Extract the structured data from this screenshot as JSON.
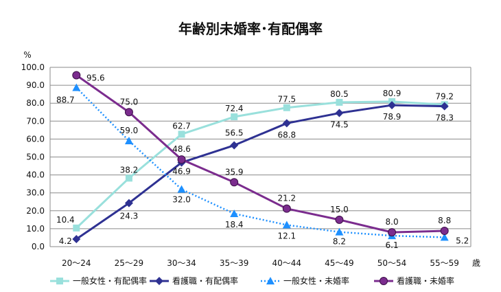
{
  "chart_data": {
    "type": "line",
    "title": "年齢別未婚率･有配偶率",
    "ylabel": "%",
    "xlabel": "歳",
    "ylim": [
      0,
      100
    ],
    "yticks": [
      "0.0",
      "10.0",
      "20.0",
      "30.0",
      "40.0",
      "50.0",
      "60.0",
      "70.0",
      "80.0",
      "90.0",
      "100.0"
    ],
    "categories": [
      "20～24",
      "25～29",
      "30～34",
      "35～39",
      "40～44",
      "45～49",
      "50～54",
      "55～59"
    ],
    "grid": true,
    "legend_position": "bottom",
    "series": [
      {
        "name": "一般女性・有配偶率",
        "color": "#99E0DC",
        "marker": "square",
        "line": "solid",
        "values": [
          10.4,
          38.2,
          62.7,
          72.4,
          77.5,
          80.5,
          80.9,
          79.2
        ],
        "labels": [
          "10.4",
          "38.2",
          "62.7",
          "72.4",
          "77.5",
          "80.5",
          "80.9",
          "79.2"
        ]
      },
      {
        "name": "看護職・有配偶率",
        "color": "#2E3192",
        "marker": "diamond",
        "line": "solid",
        "values": [
          4.2,
          24.3,
          46.9,
          56.5,
          68.8,
          74.5,
          78.9,
          78.3
        ],
        "labels": [
          "4.2",
          "24.3",
          "46.9",
          "56.5",
          "68.8",
          "74.5",
          "78.9",
          "78.3"
        ]
      },
      {
        "name": "一般女性・未婚率",
        "color": "#1E90FF",
        "marker": "triangle",
        "line": "dotted",
        "values": [
          88.7,
          59.0,
          32.0,
          18.4,
          12.1,
          8.2,
          6.1,
          5.2
        ],
        "labels": [
          "88.7",
          "59.0",
          "32.0",
          "18.4",
          "12.1",
          "8.2",
          "6.1",
          "5.2"
        ]
      },
      {
        "name": "看護職・未婚率",
        "color": "#7B2C8E",
        "marker": "circle",
        "line": "solid",
        "values": [
          95.6,
          75.0,
          48.6,
          35.9,
          21.2,
          15.0,
          8.0,
          8.8
        ],
        "labels": [
          "95.6",
          "75.0",
          "48.6",
          "35.9",
          "21.2",
          "15.0",
          "8.0",
          "8.8"
        ]
      }
    ]
  }
}
